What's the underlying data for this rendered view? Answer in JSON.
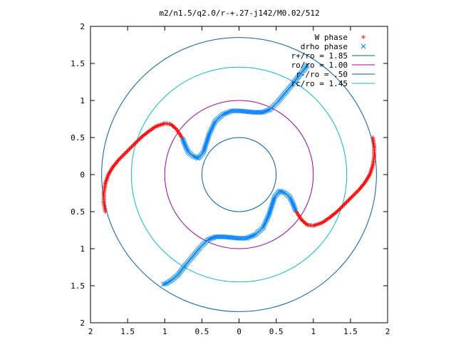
{
  "chart_data": {
    "type": "scatter",
    "title": "m2/n1.5/q2.0/r-+.27-j142/M0.02/512",
    "xlabel": "",
    "ylabel": "",
    "xlim": [
      -2,
      2
    ],
    "ylim": [
      -2,
      2
    ],
    "x_ticks": [
      "2",
      "1.5",
      "1",
      "0.5",
      "0",
      "0.5",
      "1",
      "1.5",
      "2"
    ],
    "x_tick_values": [
      -2,
      -1.5,
      -1,
      -0.5,
      0,
      0.5,
      1,
      1.5,
      2
    ],
    "y_ticks": [
      "2",
      "1.5",
      "1",
      "0.5",
      "0",
      "0.5",
      "1",
      "1.5",
      "2"
    ],
    "y_tick_values": [
      2,
      1.5,
      1,
      0.5,
      0,
      -0.5,
      -1,
      -1.5,
      -2
    ],
    "grid": false,
    "legend_position": "top-right",
    "legend": [
      {
        "label": "W phase",
        "kind": "point",
        "marker": "plus",
        "color": "#ff0000"
      },
      {
        "label": "drho phase",
        "kind": "point",
        "marker": "cross",
        "color": "#0080ff"
      },
      {
        "label": "r+/ro = 1.85",
        "kind": "line",
        "color": "#0060ad"
      },
      {
        "label": "ro/ro = 1.00",
        "kind": "line",
        "color": "#a000a0"
      },
      {
        "label": "r-/ro = .50",
        "kind": "line",
        "color": "#0060ad"
      },
      {
        "label": "rc/ro = 1.45",
        "kind": "line",
        "color": "#00c0c0"
      }
    ],
    "circles": [
      {
        "label": "r+/ro = 1.85",
        "radius": 1.85,
        "color": "#0060ad"
      },
      {
        "label": "ro/ro = 1.00",
        "radius": 1.0,
        "color": "#a000a0"
      },
      {
        "label": "r-/ro = .50",
        "radius": 0.5,
        "color": "#0060ad"
      },
      {
        "label": "rc/ro = 1.45",
        "radius": 1.45,
        "color": "#00c0c0"
      }
    ],
    "series": [
      {
        "name": "W phase",
        "color": "#ff0000",
        "marker": "plus",
        "curve_xy": [
          [
            -1.8,
            -0.5
          ],
          [
            -1.82,
            -0.38
          ],
          [
            -1.82,
            -0.25
          ],
          [
            -1.8,
            -0.12
          ],
          [
            -1.76,
            0.0
          ],
          [
            -1.7,
            0.1
          ],
          [
            -1.62,
            0.2
          ],
          [
            -1.52,
            0.3
          ],
          [
            -1.42,
            0.4
          ],
          [
            -1.32,
            0.5
          ],
          [
            -1.22,
            0.58
          ],
          [
            -1.12,
            0.65
          ],
          [
            -1.0,
            0.69
          ],
          [
            -0.92,
            0.68
          ],
          [
            -0.85,
            0.62
          ],
          [
            -0.8,
            0.55
          ],
          [
            -0.76,
            0.48
          ],
          [
            1.8,
            0.5
          ],
          [
            1.82,
            0.38
          ],
          [
            1.82,
            0.25
          ],
          [
            1.8,
            0.12
          ],
          [
            1.76,
            0.0
          ],
          [
            1.7,
            -0.1
          ],
          [
            1.62,
            -0.2
          ],
          [
            1.52,
            -0.3
          ],
          [
            1.42,
            -0.4
          ],
          [
            1.32,
            -0.5
          ],
          [
            1.22,
            -0.58
          ],
          [
            1.12,
            -0.65
          ],
          [
            1.0,
            -0.69
          ],
          [
            0.92,
            -0.68
          ],
          [
            0.85,
            -0.62
          ],
          [
            0.8,
            -0.55
          ],
          [
            0.76,
            -0.48
          ]
        ]
      },
      {
        "name": "drho phase",
        "color": "#0080ff",
        "marker": "cross",
        "curve_xy": [
          [
            -0.76,
            0.48
          ],
          [
            -0.72,
            0.38
          ],
          [
            -0.68,
            0.3
          ],
          [
            -0.62,
            0.25
          ],
          [
            -0.55,
            0.22
          ],
          [
            -0.48,
            0.3
          ],
          [
            -0.4,
            0.55
          ],
          [
            -0.32,
            0.72
          ],
          [
            -0.22,
            0.81
          ],
          [
            -0.1,
            0.86
          ],
          [
            0.0,
            0.86
          ],
          [
            0.1,
            0.85
          ],
          [
            0.2,
            0.84
          ],
          [
            0.32,
            0.84
          ],
          [
            0.42,
            0.88
          ],
          [
            0.52,
            0.98
          ],
          [
            0.62,
            1.1
          ],
          [
            0.72,
            1.22
          ],
          [
            0.82,
            1.35
          ],
          [
            0.88,
            1.42
          ],
          [
            0.92,
            1.48
          ],
          [
            0.76,
            -0.48
          ],
          [
            0.72,
            -0.38
          ],
          [
            0.68,
            -0.3
          ],
          [
            0.62,
            -0.25
          ],
          [
            0.55,
            -0.22
          ],
          [
            0.48,
            -0.3
          ],
          [
            0.4,
            -0.55
          ],
          [
            0.32,
            -0.72
          ],
          [
            0.22,
            -0.81
          ],
          [
            0.1,
            -0.86
          ],
          [
            0.0,
            -0.86
          ],
          [
            -0.1,
            -0.85
          ],
          [
            -0.2,
            -0.84
          ],
          [
            -0.32,
            -0.84
          ],
          [
            -0.42,
            -0.88
          ],
          [
            -0.52,
            -0.98
          ],
          [
            -0.62,
            -1.1
          ],
          [
            -0.72,
            -1.22
          ],
          [
            -0.82,
            -1.35
          ],
          [
            -0.9,
            -1.42
          ],
          [
            -0.98,
            -1.47
          ],
          [
            -1.02,
            -1.48
          ]
        ]
      }
    ]
  }
}
